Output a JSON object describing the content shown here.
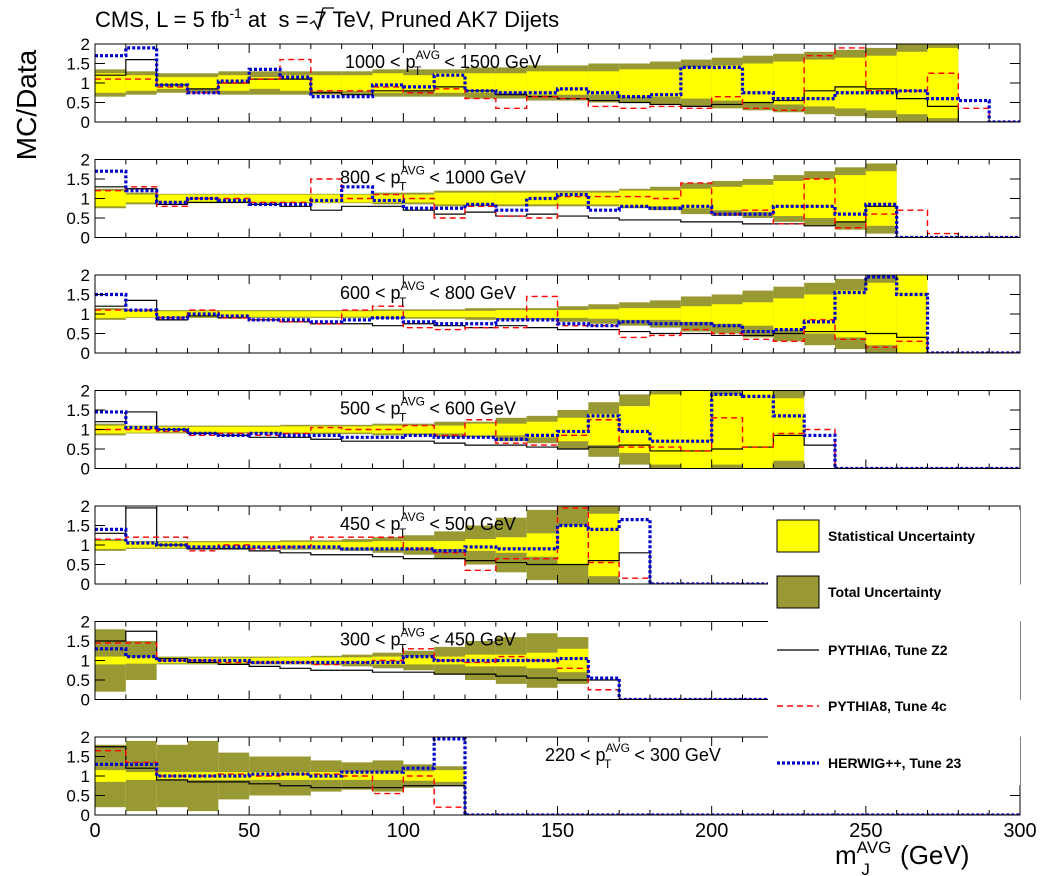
{
  "header": {
    "main": "CMS, L = 5 fb",
    "sup": "-1",
    "mid": " at  ",
    "sqrt_s": "s",
    "tail": " = 7 TeV, Pruned AK7 Dijets"
  },
  "colors": {
    "stat": "#ffff00",
    "total": "#999933",
    "pythia6": "#000000",
    "pythia8": "#ff0000",
    "herwig": "#0000cc"
  },
  "legend": [
    {
      "key": "stat",
      "label": "Statistical Uncertainty"
    },
    {
      "key": "total",
      "label": "Total Uncertainty"
    },
    {
      "key": "pythia6",
      "label": "PYTHIA6, Tune Z2"
    },
    {
      "key": "pythia8",
      "label": "PYTHIA8, Tune 4c"
    },
    {
      "key": "herwig",
      "label": "HERWIG++, Tune 23"
    }
  ],
  "chart_data": {
    "type": "step",
    "xlabel": {
      "main": "m",
      "sup": "AVG",
      "sub": "J",
      "unit": " (GeV)"
    },
    "ylabel": "MC/Data",
    "xlim": [
      0,
      300
    ],
    "ylim": [
      0,
      2
    ],
    "xticks": [
      "0",
      "50",
      "100",
      "150",
      "200",
      "250",
      "300"
    ],
    "yticks": [
      "0",
      "0.5",
      "1",
      "1.5",
      "2"
    ],
    "bin_width": 10,
    "panels": [
      {
        "label": {
          "pre": "1000 < p",
          "sup": "AVG",
          "sub": "T",
          "post": " < 1500 GeV"
        },
        "label_pos": "top-center",
        "stat": [
          0.25,
          0.2,
          0.15,
          0.15,
          0.2,
          0.15,
          0.2,
          0.2,
          0.2,
          0.25,
          0.2,
          0.25,
          0.25,
          0.25,
          0.3,
          0.3,
          0.3,
          0.35,
          0.35,
          0.4,
          0.45,
          0.5,
          0.55,
          0.6,
          0.65,
          0.7,
          0.8,
          0.9
        ],
        "total": [
          0.35,
          0.3,
          0.25,
          0.25,
          0.3,
          0.3,
          0.3,
          0.3,
          0.3,
          0.35,
          0.35,
          0.35,
          0.4,
          0.4,
          0.45,
          0.45,
          0.5,
          0.5,
          0.55,
          0.6,
          0.65,
          0.7,
          0.75,
          0.8,
          0.85,
          0.9,
          1.0,
          1.1
        ],
        "pythia6": [
          1.2,
          1.6,
          0.95,
          0.85,
          1.0,
          1.1,
          1.1,
          0.75,
          0.7,
          0.8,
          0.8,
          0.9,
          0.8,
          0.7,
          0.65,
          0.6,
          0.55,
          0.5,
          0.45,
          0.4,
          0.45,
          0.5,
          0.55,
          0.8,
          0.9,
          0.85,
          0.6,
          0.4,
          0,
          0
        ],
        "pythia8": [
          1.1,
          1.1,
          0.9,
          0.75,
          1.0,
          1.1,
          1.6,
          0.8,
          0.8,
          0.9,
          0.75,
          0.85,
          0.6,
          0.35,
          0.65,
          0.6,
          0.4,
          0.35,
          0.4,
          0.35,
          0.65,
          0.35,
          0.3,
          1.7,
          1.9,
          0.8,
          0.8,
          1.25,
          0.35,
          0,
          0
        ],
        "herwig": [
          1.7,
          1.9,
          0.95,
          0.75,
          1.05,
          1.35,
          1.15,
          0.65,
          0.65,
          0.95,
          0.9,
          1.2,
          0.8,
          0.75,
          0.75,
          0.85,
          0.75,
          0.65,
          0.7,
          1.4,
          1.4,
          0.75,
          0.6,
          0.6,
          0.75,
          0.75,
          0.8,
          0.6,
          0.55,
          0,
          0
        ]
      },
      {
        "label": {
          "pre": "800 < p",
          "sup": "AVG",
          "sub": "T",
          "post": " < 1000 GeV"
        },
        "label_pos": "top-center",
        "stat": [
          0.2,
          0.1,
          0.1,
          0.1,
          0.1,
          0.1,
          0.1,
          0.1,
          0.1,
          0.1,
          0.1,
          0.15,
          0.15,
          0.15,
          0.15,
          0.15,
          0.15,
          0.2,
          0.2,
          0.25,
          0.3,
          0.35,
          0.45,
          0.5,
          0.6,
          0.7
        ],
        "total": [
          0.25,
          0.15,
          0.12,
          0.12,
          0.12,
          0.12,
          0.12,
          0.12,
          0.12,
          0.15,
          0.15,
          0.2,
          0.2,
          0.2,
          0.2,
          0.2,
          0.2,
          0.25,
          0.3,
          0.4,
          0.45,
          0.5,
          0.6,
          0.7,
          0.8,
          0.9
        ],
        "pythia6": [
          1.3,
          1.25,
          0.85,
          0.9,
          0.9,
          0.85,
          0.8,
          0.7,
          0.8,
          0.8,
          0.7,
          0.6,
          0.65,
          0.55,
          0.6,
          0.55,
          0.5,
          0.45,
          0.45,
          0.4,
          0.4,
          0.35,
          0.35,
          0.3,
          0.4,
          0.8,
          0,
          0,
          0,
          0,
          0
        ],
        "pythia8": [
          1.2,
          1.3,
          0.8,
          1.0,
          1.0,
          0.9,
          0.9,
          1.5,
          1.0,
          1.1,
          1.0,
          0.5,
          0.8,
          0.55,
          0.5,
          1.05,
          1.05,
          1.05,
          1.0,
          1.4,
          0.6,
          0.7,
          0.35,
          1.5,
          0.25,
          0.6,
          0.7,
          0.1,
          0,
          0,
          0
        ],
        "herwig": [
          1.7,
          1.2,
          0.9,
          1.0,
          0.95,
          0.85,
          0.85,
          0.95,
          1.3,
          0.95,
          0.75,
          0.75,
          0.85,
          0.7,
          1.0,
          1.1,
          0.7,
          0.8,
          0.75,
          0.8,
          0.6,
          0.6,
          0.8,
          0.8,
          0.6,
          0.85,
          0,
          0,
          0,
          0,
          0
        ]
      },
      {
        "label": {
          "pre": "600 < p",
          "sup": "AVG",
          "sub": "T",
          "post": " < 800 GeV"
        },
        "label_pos": "top-center",
        "stat": [
          0.1,
          0.08,
          0.07,
          0.07,
          0.07,
          0.07,
          0.07,
          0.07,
          0.07,
          0.08,
          0.08,
          0.08,
          0.08,
          0.1,
          0.1,
          0.1,
          0.12,
          0.15,
          0.15,
          0.2,
          0.25,
          0.3,
          0.4,
          0.5,
          0.6,
          0.8,
          1.0
        ],
        "total": [
          0.15,
          0.1,
          0.1,
          0.1,
          0.1,
          0.1,
          0.1,
          0.1,
          0.1,
          0.12,
          0.12,
          0.12,
          0.15,
          0.15,
          0.15,
          0.2,
          0.25,
          0.3,
          0.35,
          0.45,
          0.5,
          0.6,
          0.7,
          0.8,
          0.9,
          1.1,
          1.3
        ],
        "pythia6": [
          1.2,
          1.35,
          0.85,
          0.95,
          0.9,
          0.85,
          0.8,
          0.75,
          0.75,
          0.7,
          0.75,
          0.7,
          0.65,
          0.7,
          0.65,
          0.6,
          0.6,
          0.55,
          0.5,
          0.5,
          0.45,
          0.45,
          0.5,
          0.55,
          0.55,
          0.5,
          0.4,
          0,
          0,
          0,
          0
        ],
        "pythia8": [
          1.1,
          1.1,
          0.9,
          1.1,
          0.9,
          0.85,
          0.8,
          0.75,
          1.1,
          1.2,
          0.65,
          0.6,
          0.65,
          0.65,
          1.45,
          0.7,
          0.7,
          0.4,
          0.45,
          0.6,
          0.5,
          0.35,
          0.3,
          0.85,
          0.35,
          0.15,
          0.3,
          0,
          0,
          0,
          0
        ],
        "herwig": [
          1.5,
          1.1,
          0.9,
          1.0,
          0.95,
          0.85,
          0.85,
          0.8,
          0.85,
          0.9,
          0.8,
          0.75,
          0.75,
          0.85,
          0.85,
          0.75,
          0.7,
          0.8,
          0.75,
          0.75,
          0.7,
          0.55,
          0.6,
          0.8,
          1.55,
          1.95,
          1.5,
          0,
          0,
          0,
          0
        ]
      },
      {
        "label": {
          "pre": "500 < p",
          "sup": "AVG",
          "sub": "T",
          "post": " < 600 GeV"
        },
        "label_pos": "top-center",
        "stat": [
          0.1,
          0.08,
          0.07,
          0.07,
          0.07,
          0.07,
          0.08,
          0.08,
          0.08,
          0.1,
          0.1,
          0.1,
          0.15,
          0.15,
          0.2,
          0.3,
          0.4,
          0.6,
          0.9,
          1.1,
          0.9,
          1.1,
          0.8
        ],
        "total": [
          0.15,
          0.1,
          0.1,
          0.1,
          0.1,
          0.1,
          0.12,
          0.12,
          0.12,
          0.15,
          0.15,
          0.2,
          0.2,
          0.3,
          0.35,
          0.5,
          0.7,
          0.9,
          1.3,
          1.6,
          1.6,
          1.8,
          1.2
        ],
        "pythia6": [
          1.2,
          1.45,
          1.0,
          0.9,
          0.85,
          0.8,
          0.8,
          0.75,
          0.7,
          0.7,
          0.7,
          0.65,
          0.6,
          0.6,
          0.55,
          0.5,
          0.55,
          0.6,
          0.45,
          0.45,
          0.5,
          0.55,
          0.85,
          0.6,
          0,
          0,
          0,
          0,
          0,
          0,
          0
        ],
        "pythia8": [
          1.0,
          1.0,
          0.95,
          0.85,
          0.9,
          0.85,
          0.9,
          1.05,
          1.0,
          1.0,
          1.1,
          0.85,
          1.25,
          0.65,
          0.6,
          0.85,
          1.25,
          0.55,
          0.55,
          0.45,
          1.3,
          0.55,
          0.9,
          1.0,
          0,
          0,
          0,
          0,
          0,
          0,
          0
        ],
        "herwig": [
          1.45,
          1.05,
          1.0,
          0.9,
          0.85,
          0.9,
          0.85,
          0.85,
          0.8,
          0.8,
          0.85,
          0.8,
          0.8,
          0.75,
          0.85,
          0.95,
          1.35,
          0.95,
          0.7,
          0.7,
          1.9,
          1.85,
          1.35,
          0.85,
          0,
          0,
          0,
          0,
          0,
          0,
          0
        ]
      },
      {
        "label": {
          "pre": "450 < p",
          "sup": "AVG",
          "sub": "T",
          "post": " < 500 GeV"
        },
        "label_pos": "top-center",
        "stat": [
          0.1,
          0.07,
          0.07,
          0.07,
          0.07,
          0.07,
          0.08,
          0.08,
          0.08,
          0.1,
          0.1,
          0.1,
          0.15,
          0.2,
          0.3,
          0.5,
          0.8
        ],
        "total": [
          0.15,
          0.1,
          0.1,
          0.1,
          0.1,
          0.1,
          0.12,
          0.12,
          0.15,
          0.2,
          0.25,
          0.35,
          0.5,
          0.7,
          0.9,
          1.1,
          1.3
        ],
        "pythia6": [
          1.3,
          1.95,
          1.0,
          0.9,
          0.9,
          0.85,
          0.8,
          0.75,
          0.75,
          0.7,
          0.65,
          0.65,
          0.6,
          0.55,
          0.5,
          0.5,
          0.6,
          0.8,
          0,
          0,
          0,
          0,
          0,
          0,
          0,
          0,
          0,
          0,
          0,
          0,
          0
        ],
        "pythia8": [
          1.15,
          1.2,
          1.2,
          0.85,
          1.0,
          0.9,
          0.95,
          1.2,
          1.2,
          1.2,
          0.9,
          0.8,
          0.35,
          0.65,
          0.65,
          1.95,
          0.55,
          0.15,
          0,
          0,
          0,
          0,
          0,
          0,
          0,
          0,
          0,
          0,
          0,
          0,
          0
        ],
        "herwig": [
          1.4,
          1.05,
          1.0,
          0.95,
          0.95,
          0.95,
          0.95,
          0.95,
          0.9,
          0.9,
          0.9,
          0.85,
          0.95,
          0.9,
          0.9,
          1.5,
          1.4,
          1.65,
          0,
          0,
          0,
          0,
          0,
          0,
          0,
          0,
          0,
          0,
          0,
          0,
          0
        ]
      },
      {
        "label": {
          "pre": "300 < p",
          "sup": "AVG",
          "sub": "T",
          "post": " < 450 GeV"
        },
        "label_pos": "top-center",
        "stat": [
          0.1,
          0.08,
          0.07,
          0.07,
          0.07,
          0.07,
          0.08,
          0.08,
          0.08,
          0.1,
          0.1,
          0.1,
          0.15,
          0.15,
          0.2,
          0.3
        ],
        "total": [
          0.8,
          0.5,
          0.1,
          0.1,
          0.1,
          0.1,
          0.1,
          0.12,
          0.15,
          0.2,
          0.25,
          0.35,
          0.5,
          0.6,
          0.7,
          0.6
        ],
        "pythia6": [
          1.5,
          1.75,
          1.05,
          0.95,
          0.9,
          0.85,
          0.8,
          0.75,
          0.75,
          0.7,
          0.7,
          0.65,
          0.65,
          0.6,
          0.55,
          0.5,
          0.5,
          0,
          0,
          0,
          0,
          0,
          0,
          0,
          0,
          0,
          0,
          0,
          0,
          0,
          0
        ],
        "pythia8": [
          1.45,
          1.45,
          1.0,
          1.0,
          0.95,
          0.95,
          0.95,
          0.9,
          0.95,
          1.0,
          1.3,
          1.0,
          0.95,
          1.1,
          1.0,
          0.8,
          0.25,
          0,
          0,
          0,
          0,
          0,
          0,
          0,
          0,
          0,
          0,
          0,
          0,
          0,
          0
        ],
        "herwig": [
          1.3,
          1.1,
          1.0,
          1.0,
          1.0,
          0.95,
          0.95,
          0.95,
          0.95,
          0.95,
          1.1,
          1.0,
          1.0,
          1.0,
          1.0,
          1.05,
          0.55,
          0,
          0,
          0,
          0,
          0,
          0,
          0,
          0,
          0,
          0,
          0,
          0,
          0,
          0
        ]
      },
      {
        "label": {
          "pre": "220 < p",
          "sup": "AVG",
          "sub": "T",
          "post": " < 300 GeV"
        },
        "label_pos": "top-right",
        "stat": [
          0.15,
          0.1,
          0.1,
          0.1,
          0.1,
          0.1,
          0.1,
          0.1,
          0.1,
          0.1,
          0.12,
          0.15
        ],
        "total": [
          0.8,
          0.9,
          0.8,
          0.9,
          0.6,
          0.5,
          0.5,
          0.4,
          0.35,
          0.4,
          0.3,
          0.25
        ],
        "pythia6": [
          1.75,
          1.2,
          0.9,
          0.85,
          0.85,
          0.8,
          0.75,
          0.7,
          0.7,
          0.7,
          0.75,
          0.75,
          0,
          0,
          0,
          0,
          0,
          0,
          0,
          0,
          0,
          0,
          0,
          0,
          0,
          0,
          0,
          0,
          0,
          0,
          0
        ],
        "pythia8": [
          1.65,
          1.35,
          1.0,
          1.0,
          1.05,
          1.0,
          1.05,
          1.05,
          1.0,
          0.55,
          1.0,
          0.2,
          0,
          0,
          0,
          0,
          0,
          0,
          0,
          0,
          0,
          0,
          0,
          0,
          0,
          0,
          0,
          0,
          0,
          0,
          0
        ],
        "herwig": [
          1.3,
          1.3,
          1.0,
          1.0,
          1.0,
          1.05,
          1.05,
          1.0,
          1.1,
          1.1,
          1.2,
          1.95,
          0,
          0,
          0,
          0,
          0,
          0,
          0,
          0,
          0,
          0,
          0,
          0,
          0,
          0,
          0,
          0,
          0,
          0,
          0
        ]
      }
    ]
  }
}
